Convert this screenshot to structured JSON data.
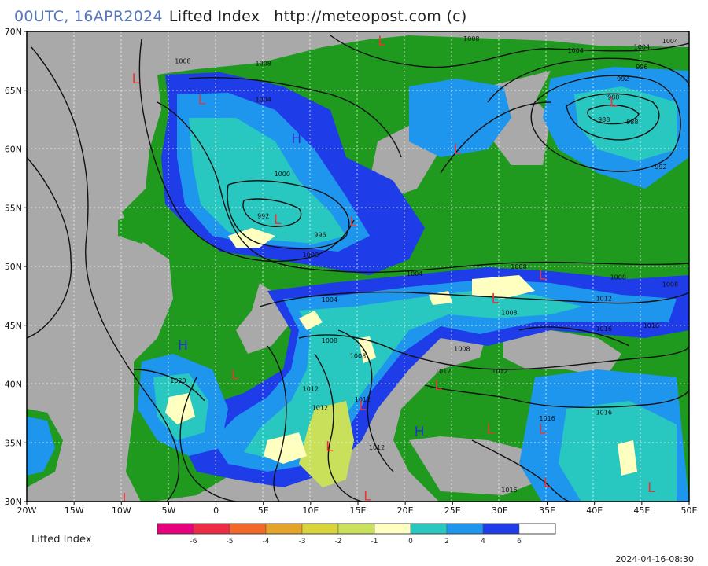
{
  "header": {
    "run": "00UTC, 16APR2024",
    "product": "Lifted Index",
    "source": "http://meteopost.com (c)"
  },
  "map": {
    "lat_labels": [
      "70N",
      "65N",
      "60N",
      "55N",
      "50N",
      "45N",
      "40N",
      "35N",
      "30N"
    ],
    "lon_labels": [
      "20W",
      "15W",
      "10W",
      "5W",
      "0",
      "5E",
      "10E",
      "15E",
      "20E",
      "25E",
      "30E",
      "35E",
      "40E",
      "45E",
      "50E"
    ],
    "pressure_labels": [
      {
        "text": "1008",
        "lon": -3.5,
        "lat": 67.5
      },
      {
        "text": "1008",
        "lon": 5,
        "lat": 67.3
      },
      {
        "text": "1004",
        "lon": 5,
        "lat": 64.2
      },
      {
        "text": "1008",
        "lon": 27,
        "lat": 69.4
      },
      {
        "text": "1004",
        "lon": 38,
        "lat": 68.4
      },
      {
        "text": "1004",
        "lon": 45,
        "lat": 68.7
      },
      {
        "text": "1004",
        "lon": 48,
        "lat": 69.2
      },
      {
        "text": "996",
        "lon": 45,
        "lat": 67.0
      },
      {
        "text": "992",
        "lon": 43,
        "lat": 66.0
      },
      {
        "text": "988",
        "lon": 42,
        "lat": 64.4
      },
      {
        "text": "988",
        "lon": 41,
        "lat": 62.5
      },
      {
        "text": "988",
        "lon": 44,
        "lat": 62.3
      },
      {
        "text": "992",
        "lon": 47,
        "lat": 58.5
      },
      {
        "text": "1000",
        "lon": 7,
        "lat": 57.9
      },
      {
        "text": "992",
        "lon": 5,
        "lat": 54.3
      },
      {
        "text": "996",
        "lon": 11,
        "lat": 52.7
      },
      {
        "text": "1000",
        "lon": 10,
        "lat": 51.0
      },
      {
        "text": "1004",
        "lon": 21,
        "lat": 49.4
      },
      {
        "text": "1008",
        "lon": 32,
        "lat": 50.0
      },
      {
        "text": "1008",
        "lon": 42.5,
        "lat": 49.1
      },
      {
        "text": "1008",
        "lon": 48,
        "lat": 48.5
      },
      {
        "text": "1004",
        "lon": 12,
        "lat": 47.2
      },
      {
        "text": "1012",
        "lon": 41,
        "lat": 47.3
      },
      {
        "text": "1008",
        "lon": 31,
        "lat": 46.1
      },
      {
        "text": "1016",
        "lon": 41,
        "lat": 44.7
      },
      {
        "text": "1016",
        "lon": 46,
        "lat": 45.0
      },
      {
        "text": "1008",
        "lon": 12,
        "lat": 43.7
      },
      {
        "text": "1008",
        "lon": 15,
        "lat": 42.4
      },
      {
        "text": "1008",
        "lon": 26,
        "lat": 43.0
      },
      {
        "text": "1012",
        "lon": 24,
        "lat": 41.1
      },
      {
        "text": "1012",
        "lon": 30,
        "lat": 41.1
      },
      {
        "text": "1020",
        "lon": -4,
        "lat": 40.3
      },
      {
        "text": "1012",
        "lon": 10,
        "lat": 39.6
      },
      {
        "text": "1012",
        "lon": 15.5,
        "lat": 38.7
      },
      {
        "text": "1012",
        "lon": 11,
        "lat": 38.0
      },
      {
        "text": "1016",
        "lon": 35,
        "lat": 37.1
      },
      {
        "text": "1016",
        "lon": 41,
        "lat": 37.6
      },
      {
        "text": "1012",
        "lon": 17,
        "lat": 34.6
      },
      {
        "text": "1016",
        "lon": 31,
        "lat": 31.0
      }
    ],
    "lows": [
      {
        "text": "L",
        "lon": 17.5,
        "lat": 69.2
      },
      {
        "text": "L",
        "lon": -8.5,
        "lat": 66.0
      },
      {
        "text": "L",
        "lon": -1.5,
        "lat": 64.2
      },
      {
        "text": "L",
        "lon": 42,
        "lat": 64.0
      },
      {
        "text": "L",
        "lon": 25.5,
        "lat": 60.0
      },
      {
        "text": "L",
        "lon": 14.5,
        "lat": 53.8
      },
      {
        "text": "L",
        "lon": 6.5,
        "lat": 54.0
      },
      {
        "text": "L",
        "lon": 34.5,
        "lat": 49.3
      },
      {
        "text": "L",
        "lon": 29.5,
        "lat": 47.3
      },
      {
        "text": "L",
        "lon": 2,
        "lat": 40.8
      },
      {
        "text": "L",
        "lon": 23.5,
        "lat": 39.9
      },
      {
        "text": "L",
        "lon": 15.5,
        "lat": 38.2
      },
      {
        "text": "L",
        "lon": 12,
        "lat": 34.7
      },
      {
        "text": "L",
        "lon": 29,
        "lat": 36.2
      },
      {
        "text": "L",
        "lon": 34.5,
        "lat": 36.2
      },
      {
        "text": "L",
        "lon": 35,
        "lat": 31.6
      },
      {
        "text": "L",
        "lon": 46,
        "lat": 31.2
      },
      {
        "text": "L",
        "lon": 16,
        "lat": 30.5
      },
      {
        "text": "L",
        "lon": -9.5,
        "lat": 30.3
      }
    ],
    "highs": [
      {
        "text": "H",
        "lon": 8.5,
        "lat": 60.9
      },
      {
        "text": "H",
        "lon": -3.5,
        "lat": 43.3
      },
      {
        "text": "H",
        "lon": 21.5,
        "lat": 36.0
      }
    ]
  },
  "legend": {
    "title": "Lifted Index",
    "ticks": [
      "-6",
      "-5",
      "-4",
      "-3",
      "-2",
      "-1",
      "0",
      "2",
      "4",
      "6"
    ],
    "colors": [
      "#e8007f",
      "#ee2b44",
      "#f26a2a",
      "#e6a32a",
      "#d8d43a",
      "#c8e05a",
      "#ffffc0",
      "#28c8c0",
      "#1e96ee",
      "#1e3ce8",
      "#ffffff"
    ]
  },
  "timestamp": "2024-04-16-08:30"
}
